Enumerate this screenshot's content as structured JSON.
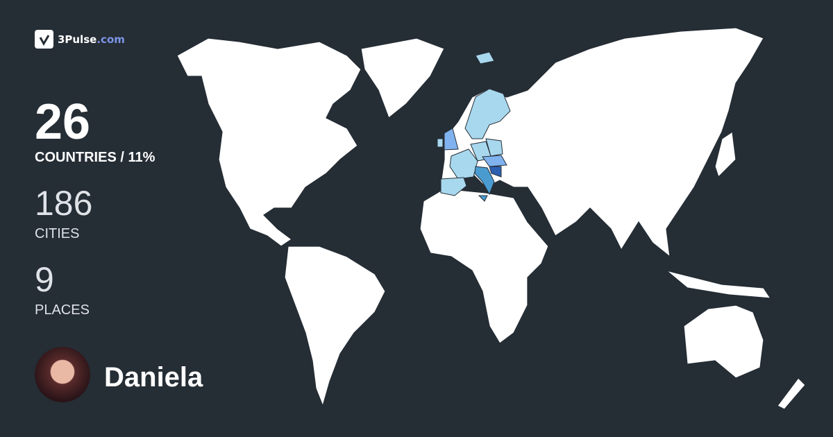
{
  "brand": {
    "name": "3Pulse",
    "domain": ".com",
    "accent": "#7c95e6"
  },
  "stats": {
    "countries": {
      "value": "26",
      "label": "COUNTRIES / 11%"
    },
    "cities": {
      "value": "186",
      "label": "CITIES"
    },
    "places": {
      "value": "9",
      "label": "PLACES"
    }
  },
  "user": {
    "name": "Daniela"
  },
  "map": {
    "background": "#252d35",
    "land": "#ffffff",
    "visited_colors": [
      "#a8d8ee",
      "#7fb2ef",
      "#4a9cd0",
      "#2c5fb0"
    ]
  }
}
